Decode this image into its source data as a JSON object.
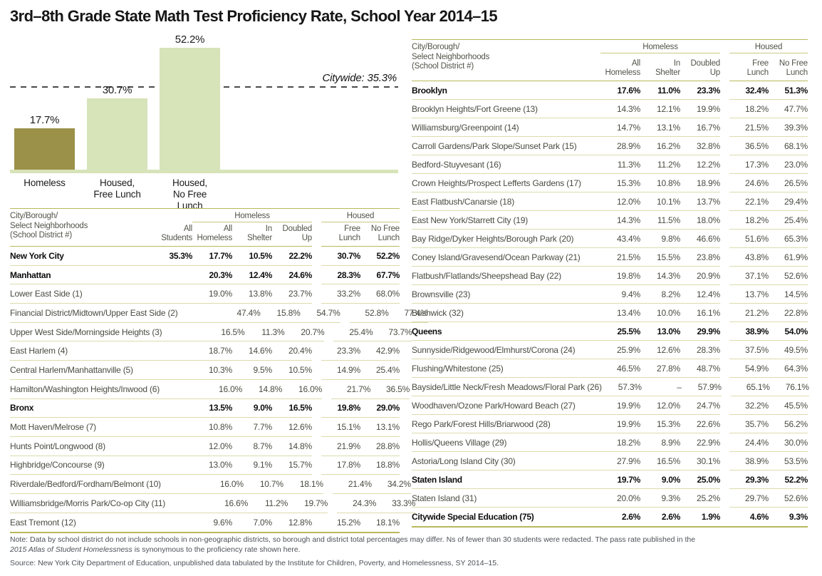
{
  "title": "3rd–8th Grade State Math Test Proficiency Rate, School Year 2014–15",
  "colors": {
    "homeless_bar": "#9B9149",
    "housed_bar": "#D7E3B9",
    "rule_strong": "#B9B95C",
    "rule_light": "#DCDCAE",
    "reference_line": "#4A4A4A"
  },
  "chart_data": [
    {
      "type": "bar",
      "title": "3rd–8th Grade State Math Test Proficiency Rate, School Year 2014–15",
      "categories": [
        "Homeless",
        "Housed,\nFree Lunch",
        "Housed,\nNo Free Lunch"
      ],
      "values": [
        17.7,
        30.7,
        52.2
      ],
      "value_labels": [
        "17.7%",
        "30.7%",
        "52.2%"
      ],
      "bar_colors": [
        "#9B9149",
        "#D7E3B9",
        "#D7E3B9"
      ],
      "reference_line": {
        "label": "Citywide: 35.3%",
        "value": 35.3,
        "style": "dashed"
      },
      "xlabel": "",
      "ylabel": "",
      "ylim": [
        0,
        60
      ],
      "grid": false,
      "legend": false
    },
    {
      "type": "table",
      "position": "left",
      "name_header": "City/Borough/\nSelect Neighborhoods\n(School District #)",
      "extra_column": "All\nStudents",
      "group_homeless": "Homeless",
      "group_housed": "Housed",
      "homeless_columns": [
        "All\nHomeless",
        "In\nShelter",
        "Doubled\nUp"
      ],
      "housed_columns": [
        "Free\nLunch",
        "No Free\nLunch"
      ],
      "rows": [
        {
          "name": "New York City",
          "bold": true,
          "all_students": "35.3%",
          "homeless": [
            "17.7%",
            "10.5%",
            "22.2%"
          ],
          "housed": [
            "30.7%",
            "52.2%"
          ]
        },
        {
          "name": "Manhattan",
          "bold": true,
          "all_students": "",
          "homeless": [
            "20.3%",
            "12.4%",
            "24.6%"
          ],
          "housed": [
            "28.3%",
            "67.7%"
          ]
        },
        {
          "name": "Lower East Side (1)",
          "bold": false,
          "all_students": "",
          "homeless": [
            "19.0%",
            "13.8%",
            "23.7%"
          ],
          "housed": [
            "33.2%",
            "68.0%"
          ]
        },
        {
          "name": "Financial District/Midtown/Upper East Side (2)",
          "bold": false,
          "all_students": "",
          "homeless": [
            "47.4%",
            "15.8%",
            "54.7%"
          ],
          "housed": [
            "52.8%",
            "77.4%"
          ]
        },
        {
          "name": "Upper West Side/Morningside Heights (3)",
          "bold": false,
          "all_students": "",
          "homeless": [
            "16.5%",
            "11.3%",
            "20.7%"
          ],
          "housed": [
            "25.4%",
            "73.7%"
          ]
        },
        {
          "name": "East Harlem (4)",
          "bold": false,
          "all_students": "",
          "homeless": [
            "18.7%",
            "14.6%",
            "20.4%"
          ],
          "housed": [
            "23.3%",
            "42.9%"
          ]
        },
        {
          "name": "Central Harlem/Manhattanville (5)",
          "bold": false,
          "all_students": "",
          "homeless": [
            "10.3%",
            "9.5%",
            "10.5%"
          ],
          "housed": [
            "14.9%",
            "25.4%"
          ]
        },
        {
          "name": "Hamilton/Washington Heights/Inwood (6)",
          "bold": false,
          "all_students": "",
          "homeless": [
            "16.0%",
            "14.8%",
            "16.0%"
          ],
          "housed": [
            "21.7%",
            "36.5%"
          ]
        },
        {
          "name": "Bronx",
          "bold": true,
          "all_students": "",
          "homeless": [
            "13.5%",
            "9.0%",
            "16.5%"
          ],
          "housed": [
            "19.8%",
            "29.0%"
          ]
        },
        {
          "name": "Mott Haven/Melrose (7)",
          "bold": false,
          "all_students": "",
          "homeless": [
            "10.8%",
            "7.7%",
            "12.6%"
          ],
          "housed": [
            "15.1%",
            "13.1%"
          ]
        },
        {
          "name": "Hunts Point/Longwood (8)",
          "bold": false,
          "all_students": "",
          "homeless": [
            "12.0%",
            "8.7%",
            "14.8%"
          ],
          "housed": [
            "21.9%",
            "28.8%"
          ]
        },
        {
          "name": "Highbridge/Concourse (9)",
          "bold": false,
          "all_students": "",
          "homeless": [
            "13.0%",
            "9.1%",
            "15.7%"
          ],
          "housed": [
            "17.8%",
            "18.8%"
          ]
        },
        {
          "name": "Riverdale/Bedford/Fordham/Belmont (10)",
          "bold": false,
          "all_students": "",
          "homeless": [
            "16.0%",
            "10.7%",
            "18.1%"
          ],
          "housed": [
            "21.4%",
            "34.2%"
          ]
        },
        {
          "name": "Williamsbridge/Morris Park/Co-op City (11)",
          "bold": false,
          "all_students": "",
          "homeless": [
            "16.6%",
            "11.2%",
            "19.7%"
          ],
          "housed": [
            "24.3%",
            "33.3%"
          ]
        },
        {
          "name": "East Tremont (12)",
          "bold": false,
          "all_students": "",
          "homeless": [
            "9.6%",
            "7.0%",
            "12.8%"
          ],
          "housed": [
            "15.2%",
            "18.1%"
          ]
        }
      ]
    },
    {
      "type": "table",
      "position": "right",
      "name_header": "City/Borough/\nSelect Neighborhoods\n(School District #)",
      "extra_column": null,
      "group_homeless": "Homeless",
      "group_housed": "Housed",
      "homeless_columns": [
        "All\nHomeless",
        "In\nShelter",
        "Doubled\nUp"
      ],
      "housed_columns": [
        "Free\nLunch",
        "No Free\nLunch"
      ],
      "rows": [
        {
          "name": "Brooklyn",
          "bold": true,
          "homeless": [
            "17.6%",
            "11.0%",
            "23.3%"
          ],
          "housed": [
            "32.4%",
            "51.3%"
          ]
        },
        {
          "name": "Brooklyn Heights/Fort Greene (13)",
          "bold": false,
          "homeless": [
            "14.3%",
            "12.1%",
            "19.9%"
          ],
          "housed": [
            "18.2%",
            "47.7%"
          ]
        },
        {
          "name": "Williamsburg/Greenpoint (14)",
          "bold": false,
          "homeless": [
            "14.7%",
            "13.1%",
            "16.7%"
          ],
          "housed": [
            "21.5%",
            "39.3%"
          ]
        },
        {
          "name": "Carroll Gardens/Park Slope/Sunset Park (15)",
          "bold": false,
          "homeless": [
            "28.9%",
            "16.2%",
            "32.8%"
          ],
          "housed": [
            "36.5%",
            "68.1%"
          ]
        },
        {
          "name": "Bedford-Stuyvesant (16)",
          "bold": false,
          "homeless": [
            "11.3%",
            "11.2%",
            "12.2%"
          ],
          "housed": [
            "17.3%",
            "23.0%"
          ]
        },
        {
          "name": "Crown Heights/Prospect Lefferts Gardens (17)",
          "bold": false,
          "homeless": [
            "15.3%",
            "10.8%",
            "18.9%"
          ],
          "housed": [
            "24.6%",
            "26.5%"
          ]
        },
        {
          "name": "East Flatbush/Canarsie (18)",
          "bold": false,
          "homeless": [
            "12.0%",
            "10.1%",
            "13.7%"
          ],
          "housed": [
            "22.1%",
            "29.4%"
          ]
        },
        {
          "name": "East New York/Starrett City (19)",
          "bold": false,
          "homeless": [
            "14.3%",
            "11.5%",
            "18.0%"
          ],
          "housed": [
            "18.2%",
            "25.4%"
          ]
        },
        {
          "name": "Bay Ridge/Dyker Heights/Borough Park (20)",
          "bold": false,
          "homeless": [
            "43.4%",
            "9.8%",
            "46.6%"
          ],
          "housed": [
            "51.6%",
            "65.3%"
          ]
        },
        {
          "name": "Coney Island/Gravesend/Ocean Parkway (21)",
          "bold": false,
          "homeless": [
            "21.5%",
            "15.5%",
            "23.8%"
          ],
          "housed": [
            "43.8%",
            "61.9%"
          ]
        },
        {
          "name": "Flatbush/Flatlands/Sheepshead Bay (22)",
          "bold": false,
          "homeless": [
            "19.8%",
            "14.3%",
            "20.9%"
          ],
          "housed": [
            "37.1%",
            "52.6%"
          ]
        },
        {
          "name": "Brownsville (23)",
          "bold": false,
          "homeless": [
            "9.4%",
            "8.2%",
            "12.4%"
          ],
          "housed": [
            "13.7%",
            "14.5%"
          ]
        },
        {
          "name": "Bushwick (32)",
          "bold": false,
          "homeless": [
            "13.4%",
            "10.0%",
            "16.1%"
          ],
          "housed": [
            "21.2%",
            "22.8%"
          ]
        },
        {
          "name": "Queens",
          "bold": true,
          "homeless": [
            "25.5%",
            "13.0%",
            "29.9%"
          ],
          "housed": [
            "38.9%",
            "54.0%"
          ]
        },
        {
          "name": "Sunnyside/Ridgewood/Elmhurst/Corona (24)",
          "bold": false,
          "homeless": [
            "25.9%",
            "12.6%",
            "28.3%"
          ],
          "housed": [
            "37.5%",
            "49.5%"
          ]
        },
        {
          "name": "Flushing/Whitestone (25)",
          "bold": false,
          "homeless": [
            "46.5%",
            "27.8%",
            "48.7%"
          ],
          "housed": [
            "54.9%",
            "64.3%"
          ]
        },
        {
          "name": "Bayside/Little Neck/Fresh Meadows/Floral Park (26)",
          "bold": false,
          "homeless": [
            "57.3%",
            "–",
            "57.9%"
          ],
          "housed": [
            "65.1%",
            "76.1%"
          ]
        },
        {
          "name": "Woodhaven/Ozone Park/Howard Beach (27)",
          "bold": false,
          "homeless": [
            "19.9%",
            "12.0%",
            "24.7%"
          ],
          "housed": [
            "32.2%",
            "45.5%"
          ]
        },
        {
          "name": "Rego Park/Forest Hills/Briarwood (28)",
          "bold": false,
          "homeless": [
            "19.9%",
            "15.3%",
            "22.6%"
          ],
          "housed": [
            "35.7%",
            "56.2%"
          ]
        },
        {
          "name": "Hollis/Queens Village (29)",
          "bold": false,
          "homeless": [
            "18.2%",
            "8.9%",
            "22.9%"
          ],
          "housed": [
            "24.4%",
            "30.0%"
          ]
        },
        {
          "name": "Astoria/Long Island City (30)",
          "bold": false,
          "homeless": [
            "27.9%",
            "16.5%",
            "30.1%"
          ],
          "housed": [
            "38.9%",
            "53.5%"
          ]
        },
        {
          "name": "Staten Island",
          "bold": true,
          "homeless": [
            "19.7%",
            "9.0%",
            "25.0%"
          ],
          "housed": [
            "29.3%",
            "52.2%"
          ]
        },
        {
          "name": "Staten Island (31)",
          "bold": false,
          "homeless": [
            "20.0%",
            "9.3%",
            "25.2%"
          ],
          "housed": [
            "29.7%",
            "52.6%"
          ]
        },
        {
          "name": "Citywide Special Education (75)",
          "bold": true,
          "homeless": [
            "2.6%",
            "2.6%",
            "1.9%"
          ],
          "housed": [
            "4.6%",
            "9.3%"
          ]
        }
      ]
    }
  ],
  "notes": {
    "note_line1": "Note: Data by school district do not include schools in non-geographic districts, so borough and district total percentages may differ. Ns of fewer than 30 students were redacted. The pass rate published in the",
    "note_italic": "2015 Atlas of Student Homelessness",
    "note_line2_rest": " is synonymous to the proficiency rate shown here.",
    "source": "Source: New York City Department of Education, unpublished data tabulated by the Institute for Children, Poverty, and Homelessness, SY 2014–15."
  }
}
